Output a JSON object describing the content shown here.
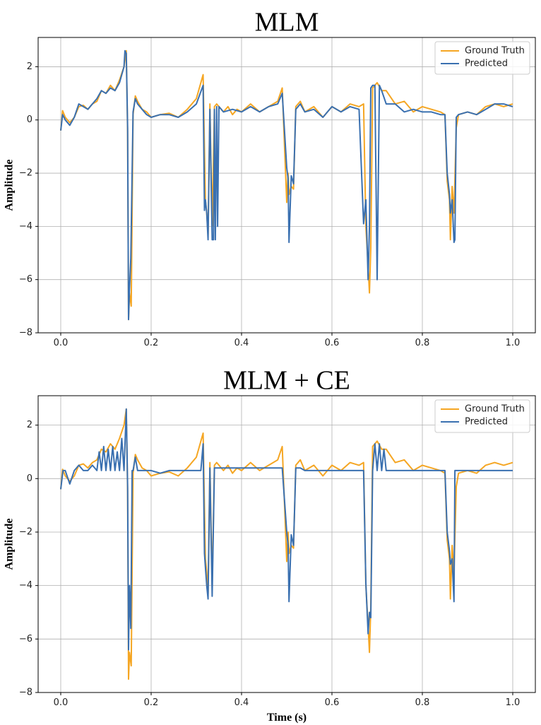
{
  "chart_data": [
    {
      "type": "line",
      "title": "MLM",
      "xlabel": "",
      "ylabel": "Amplitude",
      "xlim": [
        -0.05,
        1.05
      ],
      "ylim": [
        -8,
        3.1
      ],
      "xticks": [
        0.0,
        0.2,
        0.4,
        0.6,
        0.8,
        1.0
      ],
      "xtick_labels": [
        "0.0",
        "0.2",
        "0.4",
        "0.6",
        "0.8",
        "1.0"
      ],
      "yticks": [
        -8,
        -6,
        -4,
        -2,
        0,
        2
      ],
      "ytick_labels": [
        "−8",
        "−6",
        "−4",
        "−2",
        "0",
        "2"
      ],
      "grid": true,
      "legend_position": "top-right",
      "series": [
        {
          "name": "Ground Truth",
          "color": "#F5A623",
          "x": [
            0.0,
            0.004,
            0.01,
            0.02,
            0.03,
            0.04,
            0.05,
            0.06,
            0.07,
            0.08,
            0.09,
            0.1,
            0.11,
            0.12,
            0.13,
            0.14,
            0.145,
            0.148,
            0.15,
            0.152,
            0.156,
            0.16,
            0.165,
            0.17,
            0.18,
            0.19,
            0.2,
            0.22,
            0.24,
            0.26,
            0.28,
            0.3,
            0.315,
            0.32,
            0.323,
            0.326,
            0.33,
            0.335,
            0.34,
            0.345,
            0.35,
            0.36,
            0.37,
            0.38,
            0.39,
            0.4,
            0.42,
            0.44,
            0.46,
            0.48,
            0.49,
            0.5,
            0.503,
            0.505,
            0.51,
            0.515,
            0.52,
            0.53,
            0.54,
            0.56,
            0.58,
            0.6,
            0.62,
            0.64,
            0.66,
            0.67,
            0.675,
            0.68,
            0.683,
            0.686,
            0.69,
            0.7,
            0.71,
            0.72,
            0.74,
            0.76,
            0.78,
            0.8,
            0.82,
            0.84,
            0.85,
            0.855,
            0.86,
            0.862,
            0.866,
            0.87,
            0.875,
            0.88,
            0.9,
            0.92,
            0.94,
            0.96,
            0.98,
            1.0
          ],
          "y": [
            -0.4,
            0.35,
            0.1,
            -0.1,
            0.1,
            0.5,
            0.55,
            0.4,
            0.6,
            0.7,
            1.1,
            1.0,
            1.3,
            1.1,
            1.5,
            2.0,
            2.6,
            -0.5,
            -7.5,
            -6.5,
            -7.0,
            0.2,
            0.9,
            0.7,
            0.4,
            0.3,
            0.1,
            0.2,
            0.25,
            0.1,
            0.4,
            0.8,
            1.7,
            -3.0,
            -3.5,
            -4.3,
            0.6,
            -4.0,
            0.5,
            0.6,
            0.5,
            0.3,
            0.5,
            0.2,
            0.4,
            0.3,
            0.6,
            0.3,
            0.5,
            0.7,
            1.2,
            -3.1,
            -2.0,
            -2.8,
            -2.5,
            -2.6,
            0.5,
            0.7,
            0.3,
            0.5,
            0.1,
            0.5,
            0.3,
            0.6,
            0.5,
            0.6,
            -4.0,
            -5.5,
            -6.5,
            -4.8,
            1.2,
            1.4,
            1.1,
            1.1,
            0.6,
            0.7,
            0.3,
            0.5,
            0.4,
            0.3,
            0.2,
            -2.3,
            -3.0,
            -4.5,
            -2.5,
            -3.5,
            -0.3,
            0.2,
            0.3,
            0.2,
            0.5,
            0.6,
            0.5,
            0.6
          ]
        },
        {
          "name": "Predicted",
          "color": "#3A70B0",
          "x": [
            0.0,
            0.004,
            0.01,
            0.02,
            0.03,
            0.04,
            0.05,
            0.06,
            0.07,
            0.08,
            0.09,
            0.1,
            0.11,
            0.12,
            0.13,
            0.14,
            0.142,
            0.145,
            0.148,
            0.15,
            0.152,
            0.155,
            0.16,
            0.165,
            0.17,
            0.18,
            0.19,
            0.2,
            0.22,
            0.24,
            0.26,
            0.28,
            0.3,
            0.315,
            0.318,
            0.32,
            0.323,
            0.326,
            0.33,
            0.335,
            0.338,
            0.34,
            0.342,
            0.345,
            0.347,
            0.35,
            0.36,
            0.38,
            0.4,
            0.42,
            0.44,
            0.46,
            0.48,
            0.49,
            0.5,
            0.503,
            0.505,
            0.51,
            0.515,
            0.52,
            0.53,
            0.54,
            0.56,
            0.58,
            0.6,
            0.62,
            0.64,
            0.66,
            0.67,
            0.675,
            0.68,
            0.683,
            0.686,
            0.69,
            0.695,
            0.7,
            0.705,
            0.71,
            0.712,
            0.72,
            0.74,
            0.76,
            0.78,
            0.8,
            0.82,
            0.84,
            0.85,
            0.855,
            0.86,
            0.862,
            0.866,
            0.87,
            0.872,
            0.875,
            0.88,
            0.9,
            0.92,
            0.94,
            0.96,
            0.98,
            1.0
          ],
          "y": [
            -0.4,
            0.2,
            0.0,
            -0.2,
            0.1,
            0.6,
            0.5,
            0.4,
            0.6,
            0.8,
            1.1,
            1.0,
            1.2,
            1.1,
            1.4,
            2.0,
            2.6,
            2.5,
            -0.3,
            -7.5,
            -6.4,
            -5.2,
            0.3,
            0.8,
            0.6,
            0.4,
            0.2,
            0.1,
            0.2,
            0.2,
            0.1,
            0.3,
            0.6,
            1.3,
            -3.4,
            -3.0,
            -3.5,
            -4.5,
            0.4,
            -4.5,
            -4.5,
            0.4,
            -4.5,
            0.5,
            -4.0,
            0.5,
            0.3,
            0.4,
            0.3,
            0.5,
            0.3,
            0.5,
            0.6,
            1.0,
            -1.8,
            -2.2,
            -4.6,
            -2.1,
            -2.4,
            0.4,
            0.6,
            0.3,
            0.4,
            0.1,
            0.5,
            0.3,
            0.5,
            0.4,
            -3.9,
            -3.0,
            -6.0,
            -4.0,
            1.2,
            1.3,
            1.3,
            -6.0,
            1.3,
            1.1,
            1.0,
            0.6,
            0.6,
            0.3,
            0.4,
            0.3,
            0.3,
            0.2,
            0.2,
            -2.0,
            -2.8,
            -3.5,
            -3.0,
            -4.6,
            -4.5,
            0.1,
            0.2,
            0.3,
            0.2,
            0.4,
            0.6,
            0.6,
            0.5
          ]
        }
      ]
    },
    {
      "type": "line",
      "title": "MLM + CE",
      "xlabel": "Time (s)",
      "ylabel": "Amplitude",
      "xlim": [
        -0.05,
        1.05
      ],
      "ylim": [
        -8,
        3.1
      ],
      "xticks": [
        0.0,
        0.2,
        0.4,
        0.6,
        0.8,
        1.0
      ],
      "xtick_labels": [
        "0.0",
        "0.2",
        "0.4",
        "0.6",
        "0.8",
        "1.0"
      ],
      "yticks": [
        -8,
        -6,
        -4,
        -2,
        0,
        2
      ],
      "ytick_labels": [
        "−8",
        "−6",
        "−4",
        "−2",
        "0",
        "2"
      ],
      "grid": true,
      "legend_position": "top-right",
      "series": [
        {
          "name": "Ground Truth",
          "color": "#F5A623",
          "x": [
            0.0,
            0.004,
            0.01,
            0.02,
            0.03,
            0.04,
            0.05,
            0.06,
            0.07,
            0.08,
            0.09,
            0.1,
            0.11,
            0.12,
            0.13,
            0.14,
            0.145,
            0.148,
            0.15,
            0.152,
            0.156,
            0.16,
            0.165,
            0.17,
            0.18,
            0.19,
            0.2,
            0.22,
            0.24,
            0.26,
            0.28,
            0.3,
            0.315,
            0.32,
            0.323,
            0.326,
            0.33,
            0.335,
            0.34,
            0.345,
            0.35,
            0.36,
            0.37,
            0.38,
            0.39,
            0.4,
            0.42,
            0.44,
            0.46,
            0.48,
            0.49,
            0.5,
            0.503,
            0.505,
            0.51,
            0.515,
            0.52,
            0.53,
            0.54,
            0.56,
            0.58,
            0.6,
            0.62,
            0.64,
            0.66,
            0.67,
            0.675,
            0.68,
            0.683,
            0.686,
            0.69,
            0.7,
            0.71,
            0.72,
            0.74,
            0.76,
            0.78,
            0.8,
            0.82,
            0.84,
            0.85,
            0.855,
            0.86,
            0.862,
            0.866,
            0.87,
            0.875,
            0.88,
            0.9,
            0.92,
            0.94,
            0.96,
            0.98,
            1.0
          ],
          "y": [
            -0.4,
            0.35,
            0.1,
            -0.1,
            0.1,
            0.5,
            0.55,
            0.4,
            0.6,
            0.7,
            1.1,
            1.0,
            1.3,
            1.1,
            1.5,
            2.0,
            2.6,
            -0.5,
            -7.5,
            -6.5,
            -7.0,
            0.2,
            0.9,
            0.7,
            0.4,
            0.3,
            0.1,
            0.2,
            0.25,
            0.1,
            0.4,
            0.8,
            1.7,
            -3.0,
            -3.5,
            -4.3,
            0.6,
            -4.0,
            0.5,
            0.6,
            0.5,
            0.3,
            0.5,
            0.2,
            0.4,
            0.3,
            0.6,
            0.3,
            0.5,
            0.7,
            1.2,
            -3.1,
            -2.0,
            -2.8,
            -2.5,
            -2.6,
            0.5,
            0.7,
            0.3,
            0.5,
            0.1,
            0.5,
            0.3,
            0.6,
            0.5,
            0.6,
            -4.0,
            -5.5,
            -6.5,
            -4.8,
            1.2,
            1.4,
            1.1,
            1.1,
            0.6,
            0.7,
            0.3,
            0.5,
            0.4,
            0.3,
            0.2,
            -2.3,
            -3.0,
            -4.5,
            -2.5,
            -3.5,
            -0.3,
            0.2,
            0.3,
            0.2,
            0.5,
            0.6,
            0.5,
            0.6
          ]
        },
        {
          "name": "Predicted",
          "color": "#3A70B0",
          "x": [
            0.0,
            0.005,
            0.01,
            0.02,
            0.03,
            0.04,
            0.05,
            0.06,
            0.07,
            0.08,
            0.085,
            0.09,
            0.095,
            0.1,
            0.105,
            0.11,
            0.115,
            0.12,
            0.125,
            0.13,
            0.135,
            0.14,
            0.145,
            0.148,
            0.15,
            0.152,
            0.155,
            0.158,
            0.16,
            0.165,
            0.17,
            0.18,
            0.19,
            0.2,
            0.22,
            0.24,
            0.26,
            0.28,
            0.3,
            0.31,
            0.315,
            0.318,
            0.32,
            0.323,
            0.326,
            0.33,
            0.335,
            0.34,
            0.35,
            0.36,
            0.38,
            0.4,
            0.42,
            0.44,
            0.46,
            0.48,
            0.49,
            0.5,
            0.503,
            0.505,
            0.51,
            0.515,
            0.52,
            0.53,
            0.54,
            0.56,
            0.58,
            0.6,
            0.62,
            0.64,
            0.66,
            0.67,
            0.675,
            0.68,
            0.683,
            0.686,
            0.69,
            0.695,
            0.7,
            0.705,
            0.71,
            0.715,
            0.72,
            0.73,
            0.74,
            0.76,
            0.78,
            0.8,
            0.82,
            0.84,
            0.85,
            0.855,
            0.86,
            0.862,
            0.866,
            0.87,
            0.872,
            0.875,
            0.88,
            0.9,
            0.92,
            0.94,
            0.96,
            0.98,
            1.0
          ],
          "y": [
            -0.4,
            0.3,
            0.3,
            -0.2,
            0.3,
            0.5,
            0.3,
            0.3,
            0.5,
            0.3,
            1.0,
            0.3,
            1.2,
            0.3,
            1.1,
            0.3,
            1.2,
            0.3,
            1.0,
            0.3,
            1.5,
            0.3,
            2.6,
            -0.3,
            -6.4,
            -4.0,
            -5.6,
            0.3,
            0.3,
            0.8,
            0.3,
            0.3,
            0.3,
            0.3,
            0.2,
            0.3,
            0.3,
            0.3,
            0.3,
            0.3,
            1.3,
            -2.8,
            -3.3,
            -4.0,
            -4.5,
            0.4,
            -4.4,
            0.4,
            0.4,
            0.4,
            0.4,
            0.4,
            0.4,
            0.4,
            0.4,
            0.4,
            0.4,
            -2.0,
            -2.5,
            -4.6,
            -2.1,
            -2.5,
            0.4,
            0.4,
            0.3,
            0.3,
            0.3,
            0.3,
            0.3,
            0.3,
            0.3,
            0.3,
            -3.9,
            -5.8,
            -5.0,
            -5.2,
            0.3,
            1.3,
            0.3,
            1.3,
            0.3,
            1.1,
            0.3,
            0.3,
            0.3,
            0.3,
            0.3,
            0.3,
            0.3,
            0.3,
            0.3,
            -2.0,
            -2.7,
            -3.2,
            -3.0,
            -4.6,
            0.3,
            0.3,
            0.3,
            0.3,
            0.3,
            0.3,
            0.3,
            0.3,
            0.3
          ]
        }
      ]
    }
  ]
}
